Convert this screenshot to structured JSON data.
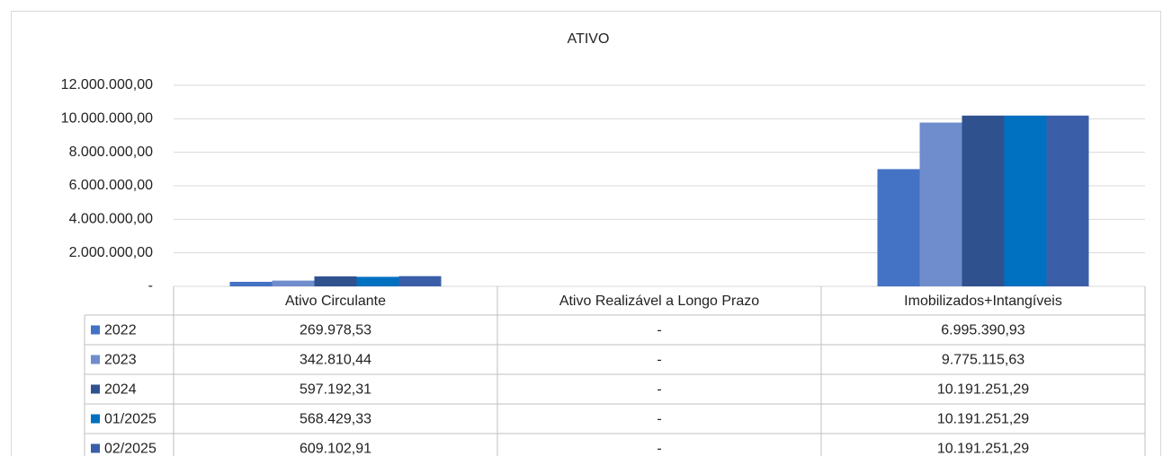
{
  "chart_data": {
    "type": "bar",
    "title": "ATIVO",
    "categories": [
      "Ativo Circulante",
      "Ativo Realizável a Longo Prazo",
      "Imobilizados+Intangíveis"
    ],
    "series": [
      {
        "name": "2022",
        "color": "#4472c4",
        "values": [
          269978.53,
          0,
          6995390.93
        ],
        "value_labels": [
          "269.978,53",
          "-",
          "6.995.390,93"
        ]
      },
      {
        "name": "2023",
        "color": "#6f8ccd",
        "values": [
          342810.44,
          0,
          9775115.63
        ],
        "value_labels": [
          "342.810,44",
          "-",
          "9.775.115,63"
        ]
      },
      {
        "name": "2024",
        "color": "#2f528f",
        "values": [
          597192.31,
          0,
          10191251.29
        ],
        "value_labels": [
          "597.192,31",
          "-",
          "10.191.251,29"
        ]
      },
      {
        "name": "01/2025",
        "color": "#0070c0",
        "values": [
          568429.33,
          0,
          10191251.29
        ],
        "value_labels": [
          "568.429,33",
          "-",
          "10.191.251,29"
        ]
      },
      {
        "name": "02/2025",
        "color": "#3a5fa8",
        "values": [
          609102.91,
          0,
          10191251.29
        ],
        "value_labels": [
          "609.102,91",
          "-",
          "10.191.251,29"
        ]
      }
    ],
    "ylim": [
      0,
      12000000
    ],
    "yticks": [
      {
        "value": 0,
        "label": "-"
      },
      {
        "value": 2000000,
        "label": "2.000.000,00"
      },
      {
        "value": 4000000,
        "label": "4.000.000,00"
      },
      {
        "value": 6000000,
        "label": "6.000.000,00"
      },
      {
        "value": 8000000,
        "label": "8.000.000,00"
      },
      {
        "value": 10000000,
        "label": "10.000.000,00"
      },
      {
        "value": 12000000,
        "label": "12.000.000,00"
      }
    ],
    "grid": true
  }
}
